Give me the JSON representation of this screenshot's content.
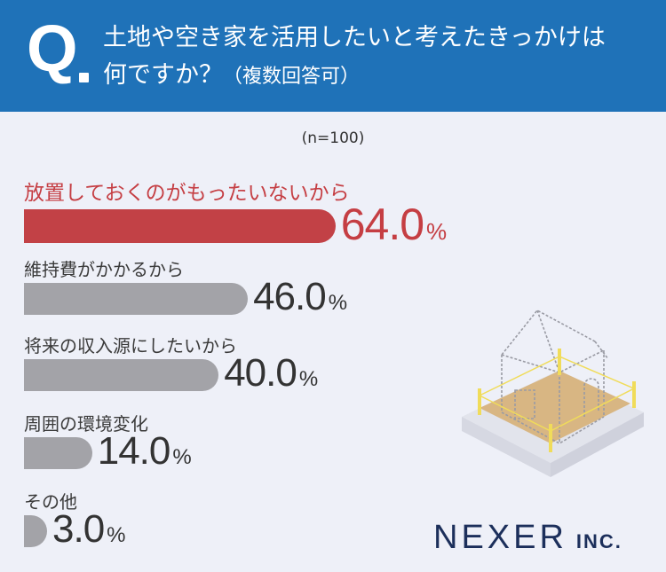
{
  "header": {
    "q_mark": "Q",
    "question_line1": "土地や空き家を活用したいと考えたきっかけは",
    "question_line2": "何ですか？",
    "question_note": "（複数回答可）"
  },
  "sample_size": "(n=100)",
  "chart_data": {
    "type": "bar",
    "orientation": "horizontal",
    "categories": [
      "放置しておくのがもったいないから",
      "維持費がかかるから",
      "将来の収入源にしたいから",
      "周囲の環境変化",
      "その他"
    ],
    "values": [
      64.0,
      46.0,
      40.0,
      14.0,
      3.0
    ],
    "value_labels": [
      "64.0",
      "46.0",
      "40.0",
      "14.0",
      "3.0"
    ],
    "unit": "%",
    "highlight_index": 0,
    "colors": {
      "highlight": "#c24146",
      "default": "#a3a3a8",
      "header": "#1f72b8"
    }
  },
  "logo": {
    "main": "NEXER",
    "sub": "INC."
  }
}
